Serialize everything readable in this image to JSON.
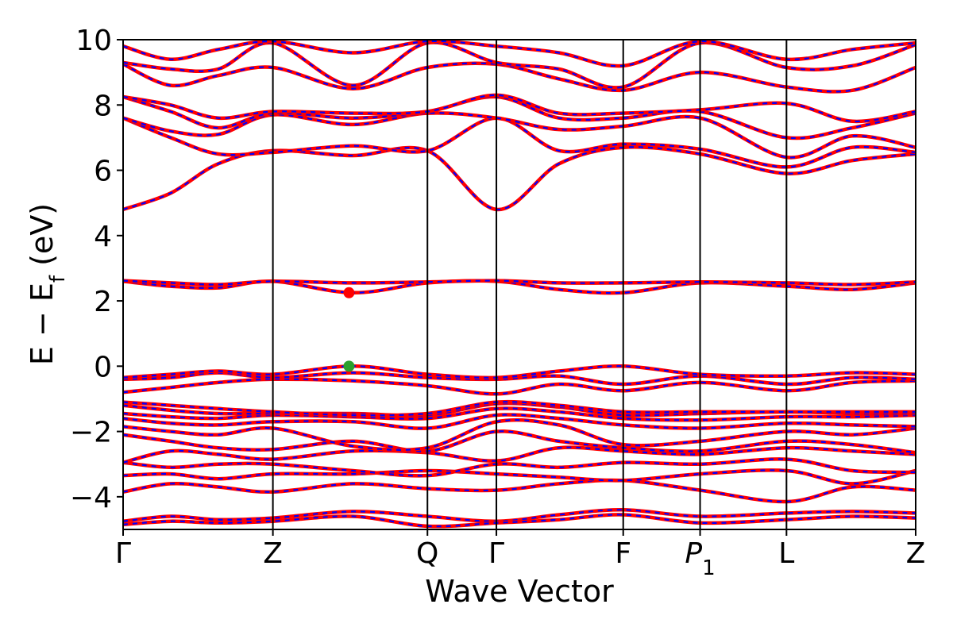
{
  "chart_data": {
    "type": "line",
    "title": "",
    "xlabel": "Wave Vector",
    "ylabel": "E − E",
    "ylabel_sub": "f",
    "ylabel_unit": " (eV)",
    "ylim": [
      -5,
      10
    ],
    "y_ticks": [
      -4,
      -2,
      0,
      2,
      4,
      6,
      8,
      10
    ],
    "y_tick_labels": [
      "−4",
      "−2",
      "0",
      "2",
      "4",
      "6",
      "8",
      "10"
    ],
    "xlim": [
      0,
      1
    ],
    "x_ticks": [
      {
        "label": "Γ",
        "pos": 0.0
      },
      {
        "label": "Z",
        "pos": 0.189
      },
      {
        "label": "Q",
        "pos": 0.384
      },
      {
        "label": "Γ",
        "pos": 0.471
      },
      {
        "label": "F",
        "pos": 0.631
      },
      {
        "label": "P",
        "sub": "1",
        "italic": true,
        "pos": 0.728
      },
      {
        "label": "L",
        "pos": 0.837
      },
      {
        "label": "Z",
        "pos": 1.0
      }
    ],
    "grid": false,
    "band_colors": {
      "solid": "#ff0000",
      "dashed": "#0000ff"
    },
    "markers": [
      {
        "name": "CBM",
        "x": 0.285,
        "y": 2.25,
        "color": "#ff0000"
      },
      {
        "name": "VBM",
        "x": 0.285,
        "y": 0.0,
        "color": "#2ca02c"
      }
    ],
    "series": [
      {
        "x": [
          0,
          0.06,
          0.12,
          0.189,
          0.29,
          0.384,
          0.471,
          0.55,
          0.631,
          0.728,
          0.837,
          0.92,
          1.0
        ],
        "y": [
          -4.75,
          -4.6,
          -4.7,
          -4.65,
          -4.45,
          -4.6,
          -4.75,
          -4.55,
          -4.4,
          -4.6,
          -4.5,
          -4.45,
          -4.5
        ]
      },
      {
        "x": [
          0,
          0.06,
          0.12,
          0.189,
          0.29,
          0.384,
          0.471,
          0.55,
          0.631,
          0.728,
          0.837,
          0.92,
          1.0
        ],
        "y": [
          -4.85,
          -4.75,
          -4.8,
          -4.75,
          -4.6,
          -4.9,
          -4.8,
          -4.7,
          -4.55,
          -4.8,
          -4.7,
          -4.6,
          -4.65
        ]
      },
      {
        "x": [
          0,
          0.06,
          0.12,
          0.189,
          0.29,
          0.384,
          0.471,
          0.55,
          0.631,
          0.728,
          0.837,
          0.92,
          1.0
        ],
        "y": [
          -3.85,
          -3.6,
          -3.7,
          -3.85,
          -3.6,
          -3.75,
          -3.8,
          -3.6,
          -3.5,
          -3.8,
          -4.15,
          -3.7,
          -3.8
        ]
      },
      {
        "x": [
          0,
          0.06,
          0.12,
          0.189,
          0.29,
          0.384,
          0.471,
          0.55,
          0.631,
          0.728,
          0.837,
          0.92,
          1.0
        ],
        "y": [
          -3.35,
          -3.3,
          -3.45,
          -3.3,
          -3.3,
          -3.2,
          -3.3,
          -3.4,
          -3.5,
          -3.3,
          -3.2,
          -3.6,
          -3.2
        ]
      },
      {
        "x": [
          0,
          0.06,
          0.12,
          0.189,
          0.29,
          0.384,
          0.471,
          0.55,
          0.631,
          0.728,
          0.837,
          0.92,
          1.0
        ],
        "y": [
          -2.95,
          -3.1,
          -3.0,
          -3.0,
          -3.2,
          -3.35,
          -3.0,
          -3.1,
          -2.95,
          -3.0,
          -2.85,
          -3.2,
          -3.25
        ]
      },
      {
        "x": [
          0,
          0.06,
          0.12,
          0.189,
          0.29,
          0.384,
          0.471,
          0.55,
          0.631,
          0.728,
          0.837,
          0.92,
          1.0
        ],
        "y": [
          -2.95,
          -2.6,
          -2.7,
          -2.85,
          -2.6,
          -2.65,
          -2.9,
          -2.5,
          -2.6,
          -2.7,
          -2.5,
          -2.6,
          -2.7
        ]
      },
      {
        "x": [
          0,
          0.06,
          0.12,
          0.189,
          0.29,
          0.384,
          0.471,
          0.55,
          0.631,
          0.728,
          0.837,
          0.92,
          1.0
        ],
        "y": [
          -2.1,
          -2.3,
          -2.5,
          -2.55,
          -2.3,
          -2.6,
          -2.0,
          -2.3,
          -2.5,
          -2.6,
          -2.3,
          -2.4,
          -2.65
        ]
      },
      {
        "x": [
          0,
          0.06,
          0.12,
          0.189,
          0.29,
          0.384,
          0.471,
          0.55,
          0.631,
          0.728,
          0.837,
          0.92,
          1.0
        ],
        "y": [
          -1.85,
          -2.0,
          -2.1,
          -1.9,
          -2.45,
          -2.5,
          -1.7,
          -1.8,
          -2.4,
          -2.3,
          -2.0,
          -2.1,
          -1.9
        ]
      },
      {
        "x": [
          0,
          0.06,
          0.12,
          0.189,
          0.29,
          0.384,
          0.471,
          0.55,
          0.631,
          0.728,
          0.837,
          0.92,
          1.0
        ],
        "y": [
          -1.6,
          -1.75,
          -1.8,
          -1.7,
          -1.7,
          -1.9,
          -1.5,
          -1.6,
          -1.8,
          -1.9,
          -1.75,
          -1.8,
          -1.85
        ]
      },
      {
        "x": [
          0,
          0.06,
          0.12,
          0.189,
          0.29,
          0.384,
          0.471,
          0.55,
          0.631,
          0.728,
          0.837,
          0.92,
          1.0
        ],
        "y": [
          -1.45,
          -1.55,
          -1.6,
          -1.5,
          -1.55,
          -1.6,
          -1.3,
          -1.4,
          -1.6,
          -1.65,
          -1.55,
          -1.55,
          -1.5
        ]
      },
      {
        "x": [
          0,
          0.06,
          0.12,
          0.189,
          0.29,
          0.384,
          0.471,
          0.55,
          0.631,
          0.728,
          0.837,
          0.92,
          1.0
        ],
        "y": [
          -1.2,
          -1.35,
          -1.45,
          -1.45,
          -1.45,
          -1.5,
          -1.15,
          -1.25,
          -1.5,
          -1.45,
          -1.4,
          -1.45,
          -1.45
        ]
      },
      {
        "x": [
          0,
          0.06,
          0.12,
          0.189,
          0.29,
          0.384,
          0.471,
          0.55,
          0.631,
          0.728,
          0.837,
          0.92,
          1.0
        ],
        "y": [
          -1.1,
          -1.2,
          -1.3,
          -1.4,
          -1.5,
          -1.45,
          -1.1,
          -1.2,
          -1.4,
          -1.4,
          -1.4,
          -1.4,
          -1.4
        ]
      },
      {
        "x": [
          0,
          0.06,
          0.12,
          0.189,
          0.29,
          0.384,
          0.471,
          0.55,
          0.631,
          0.728,
          0.837,
          0.92,
          1.0
        ],
        "y": [
          -0.8,
          -0.65,
          -0.5,
          -0.4,
          -0.45,
          -0.6,
          -0.85,
          -0.55,
          -0.75,
          -0.5,
          -0.75,
          -0.5,
          -0.45
        ]
      },
      {
        "x": [
          0,
          0.06,
          0.12,
          0.189,
          0.29,
          0.384,
          0.471,
          0.55,
          0.631,
          0.728,
          0.837,
          0.92,
          1.0
        ],
        "y": [
          -0.4,
          -0.35,
          -0.2,
          -0.35,
          -0.2,
          -0.35,
          -0.4,
          -0.3,
          -0.55,
          -0.3,
          -0.55,
          -0.35,
          -0.4
        ]
      },
      {
        "x": [
          0,
          0.06,
          0.12,
          0.189,
          0.29,
          0.384,
          0.471,
          0.55,
          0.631,
          0.728,
          0.837,
          0.92,
          1.0
        ],
        "y": [
          -0.35,
          -0.25,
          -0.15,
          -0.25,
          0.0,
          -0.25,
          -0.35,
          -0.15,
          0.0,
          -0.25,
          -0.3,
          -0.2,
          -0.25
        ]
      },
      {
        "x": [
          0,
          0.06,
          0.12,
          0.189,
          0.29,
          0.384,
          0.471,
          0.55,
          0.631,
          0.728,
          0.837,
          0.92,
          1.0
        ],
        "y": [
          2.6,
          2.45,
          2.4,
          2.6,
          2.25,
          2.55,
          2.6,
          2.35,
          2.25,
          2.55,
          2.45,
          2.35,
          2.55
        ]
      },
      {
        "x": [
          0,
          0.06,
          0.12,
          0.189,
          0.29,
          0.384,
          0.471,
          0.55,
          0.631,
          0.728,
          0.837,
          0.92,
          1.0
        ],
        "y": [
          2.62,
          2.55,
          2.5,
          2.6,
          2.55,
          2.58,
          2.62,
          2.55,
          2.55,
          2.58,
          2.55,
          2.5,
          2.58
        ]
      },
      {
        "x": [
          0,
          0.06,
          0.12,
          0.189,
          0.29,
          0.384,
          0.471,
          0.55,
          0.631,
          0.728,
          0.837,
          0.92,
          1.0
        ],
        "y": [
          4.8,
          5.3,
          6.2,
          6.6,
          6.45,
          6.6,
          4.8,
          6.2,
          6.7,
          6.5,
          5.9,
          6.3,
          6.5
        ]
      },
      {
        "x": [
          0,
          0.06,
          0.12,
          0.189,
          0.29,
          0.384,
          0.471,
          0.55,
          0.631,
          0.728,
          0.837,
          0.92,
          1.0
        ],
        "y": [
          7.6,
          7.0,
          6.5,
          6.55,
          6.75,
          6.6,
          7.6,
          6.6,
          6.8,
          6.65,
          6.1,
          6.7,
          6.55
        ]
      },
      {
        "x": [
          0,
          0.06,
          0.12,
          0.189,
          0.29,
          0.384,
          0.471,
          0.55,
          0.631,
          0.728,
          0.837,
          0.92,
          1.0
        ],
        "y": [
          7.6,
          7.2,
          7.1,
          7.7,
          7.4,
          7.75,
          7.6,
          7.25,
          7.35,
          7.6,
          6.4,
          7.05,
          6.7
        ]
      },
      {
        "x": [
          0,
          0.06,
          0.12,
          0.189,
          0.29,
          0.384,
          0.471,
          0.55,
          0.631,
          0.728,
          0.837,
          0.92,
          1.0
        ],
        "y": [
          8.25,
          7.8,
          7.3,
          7.75,
          7.6,
          7.8,
          8.25,
          7.6,
          7.6,
          7.8,
          7.0,
          7.3,
          7.75
        ]
      },
      {
        "x": [
          0,
          0.06,
          0.12,
          0.189,
          0.29,
          0.384,
          0.471,
          0.55,
          0.631,
          0.728,
          0.837,
          0.92,
          1.0
        ],
        "y": [
          8.25,
          8.0,
          7.6,
          7.8,
          7.75,
          7.8,
          8.3,
          7.75,
          7.75,
          7.85,
          8.05,
          7.5,
          7.8
        ]
      },
      {
        "x": [
          0,
          0.06,
          0.12,
          0.189,
          0.29,
          0.384,
          0.471,
          0.55,
          0.631,
          0.728,
          0.837,
          0.92,
          1.0
        ],
        "y": [
          9.25,
          8.6,
          8.9,
          9.15,
          8.5,
          9.15,
          9.25,
          8.8,
          8.45,
          9.0,
          8.55,
          8.45,
          9.15
        ]
      },
      {
        "x": [
          0,
          0.06,
          0.12,
          0.189,
          0.29,
          0.384,
          0.471,
          0.55,
          0.631,
          0.728,
          0.837,
          0.92,
          1.0
        ],
        "y": [
          9.3,
          9.1,
          9.1,
          9.9,
          8.6,
          9.9,
          9.3,
          9.1,
          8.55,
          9.9,
          9.15,
          9.2,
          9.85
        ]
      },
      {
        "x": [
          0,
          0.06,
          0.12,
          0.189,
          0.29,
          0.384,
          0.471,
          0.55,
          0.631,
          0.728,
          0.837,
          0.92,
          1.0
        ],
        "y": [
          9.8,
          9.4,
          9.7,
          9.95,
          9.6,
          9.95,
          9.8,
          9.6,
          9.2,
          9.95,
          9.4,
          9.7,
          9.9
        ]
      }
    ]
  }
}
